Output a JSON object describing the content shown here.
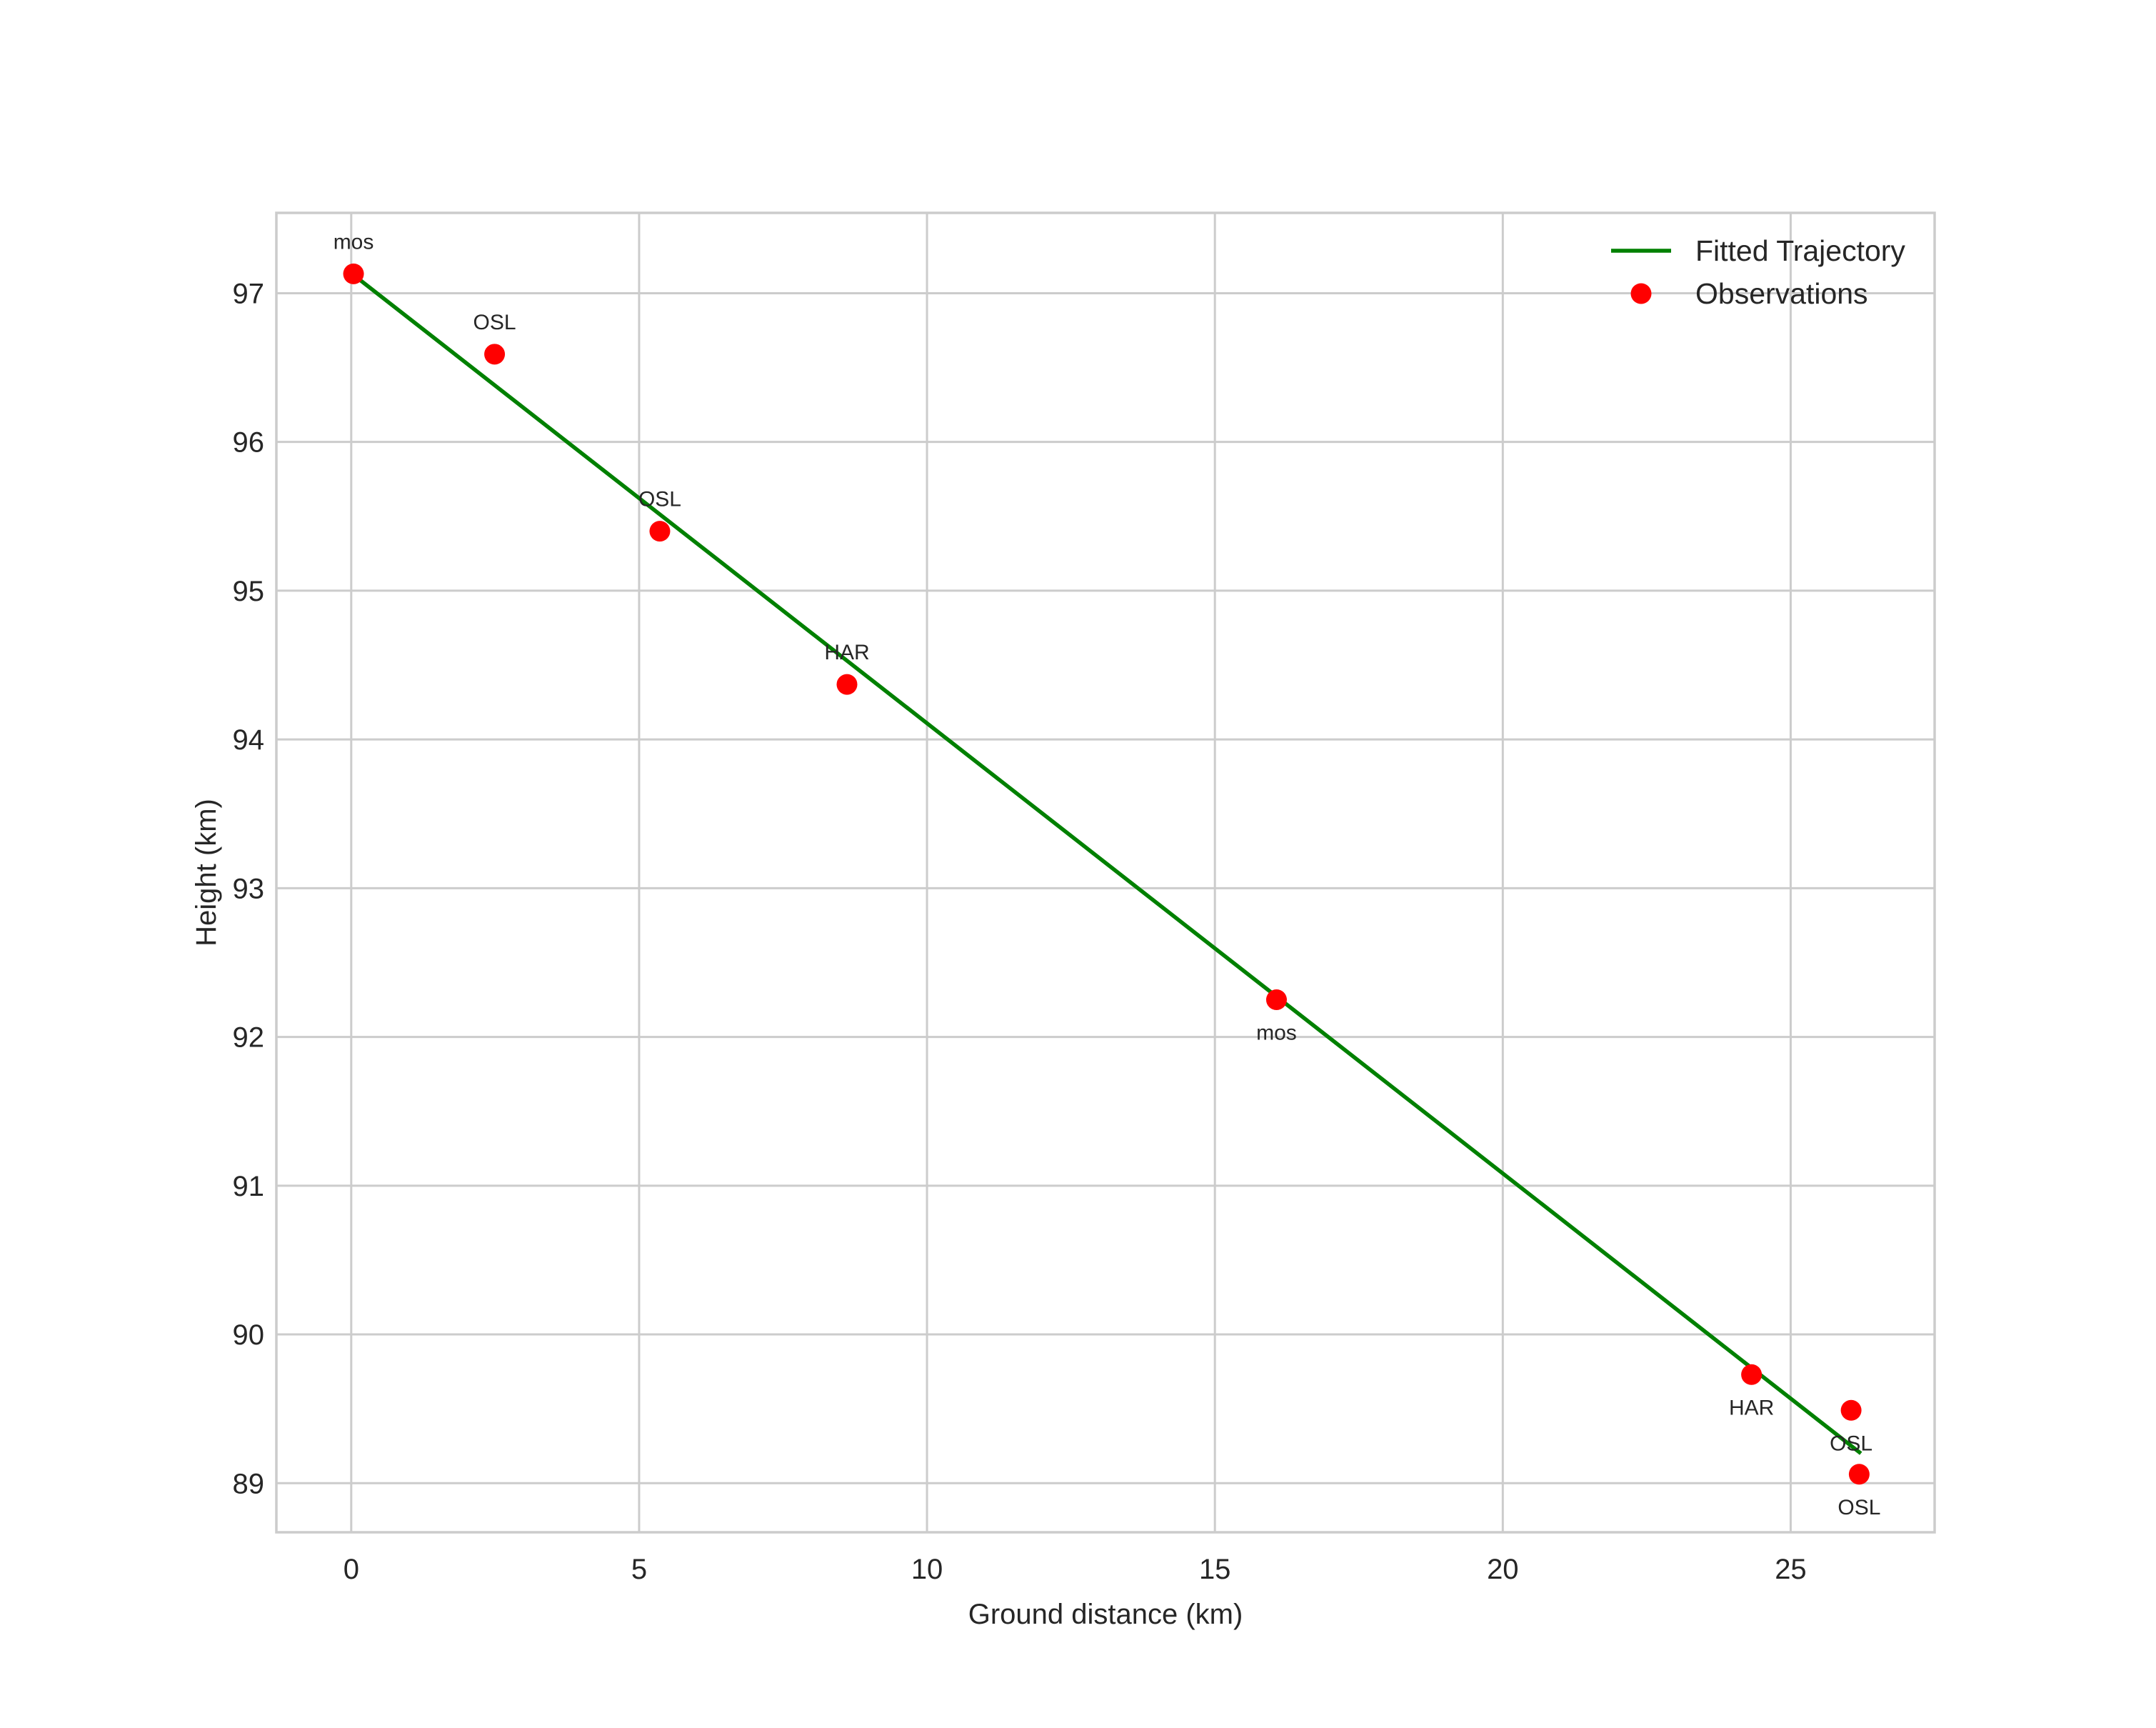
{
  "chart_data": {
    "type": "scatter",
    "title": "",
    "xlabel": "Ground distance (km)",
    "ylabel": "Height (km)",
    "xlim": [
      -1.3,
      27.5
    ],
    "ylim": [
      88.67,
      97.54
    ],
    "xticks": [
      0,
      5,
      10,
      15,
      20,
      25
    ],
    "yticks": [
      89,
      90,
      91,
      92,
      93,
      94,
      95,
      96,
      97
    ],
    "grid": true,
    "legend_position": "upper right",
    "legend": [
      {
        "label": "Fitted Trajectory",
        "kind": "line",
        "color": "#008000"
      },
      {
        "label": "Observations",
        "kind": "marker",
        "color": "#ff0000"
      }
    ],
    "series": [
      {
        "name": "Fitted Trajectory",
        "type": "line",
        "color": "#008000",
        "x": [
          0.05,
          26.22
        ],
        "y": [
          97.12,
          89.2
        ]
      },
      {
        "name": "Observations",
        "type": "scatter",
        "color": "#ff0000",
        "points": [
          {
            "x": 0.04,
            "y": 97.13,
            "label": "mos",
            "label_pos": "above"
          },
          {
            "x": 2.49,
            "y": 96.59,
            "label": "OSL",
            "label_pos": "above"
          },
          {
            "x": 5.36,
            "y": 95.4,
            "label": "OSL",
            "label_pos": "above"
          },
          {
            "x": 8.61,
            "y": 94.37,
            "label": "HAR",
            "label_pos": "above"
          },
          {
            "x": 16.07,
            "y": 92.25,
            "label": "mos",
            "label_pos": "below"
          },
          {
            "x": 24.32,
            "y": 89.73,
            "label": "HAR",
            "label_pos": "below"
          },
          {
            "x": 26.05,
            "y": 89.49,
            "label": "OSL",
            "label_pos": "below"
          },
          {
            "x": 26.19,
            "y": 89.06,
            "label": "OSL",
            "label_pos": "below"
          }
        ]
      }
    ]
  },
  "colors": {
    "background": "#ffffff",
    "grid": "#cccccc",
    "text": "#262626",
    "line": "#008000",
    "marker": "#ff0000"
  }
}
